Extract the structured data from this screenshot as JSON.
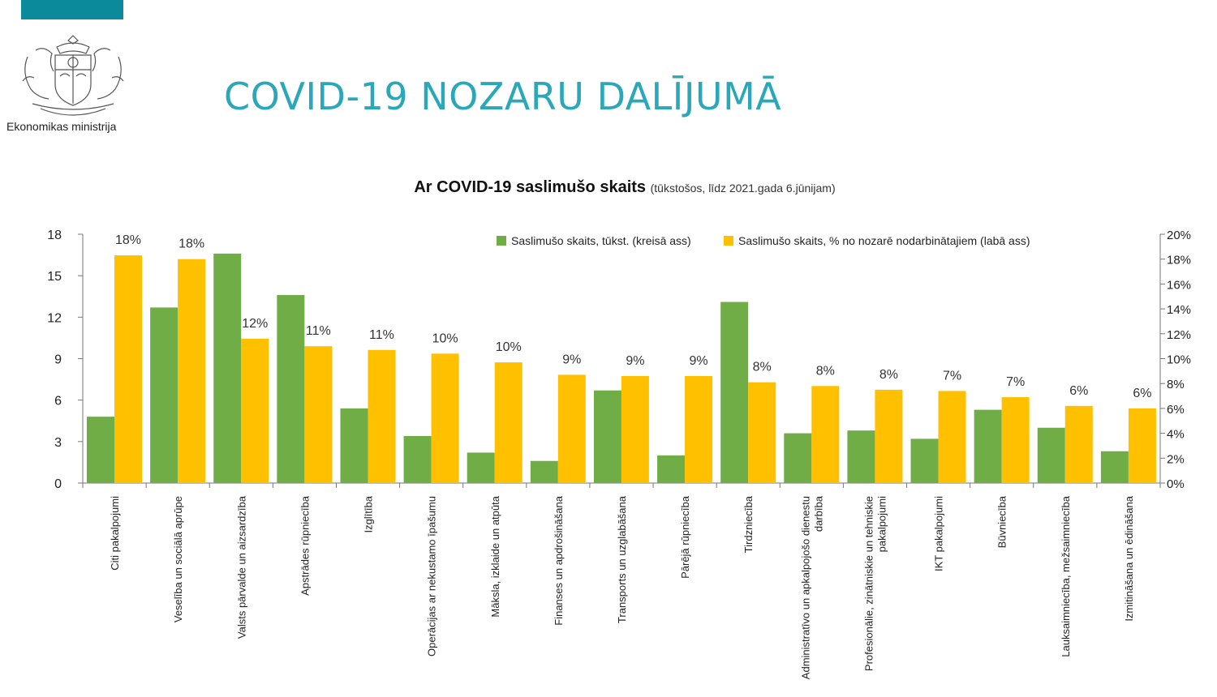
{
  "header": {
    "ministry_name": "Ekonomikas ministrija",
    "page_title": "COVID-19 NOZARU DALĪJUMĀ",
    "accent_color": "#0b8a9c",
    "title_color": "#2aa7b8"
  },
  "chart_data": {
    "type": "bar",
    "title": "Ar COVID-19 saslimušo skaits",
    "subtitle": "(tūkstošos, līdz 2021.gada 6.jūnijam)",
    "categories": [
      [
        "Citi pakalpojumi"
      ],
      [
        "Veselība un sociālā aprūpe"
      ],
      [
        "Valsts pārvalde un aizsardzība"
      ],
      [
        "Apstrādes rūpniecība"
      ],
      [
        "Izglītība"
      ],
      [
        "Operācijas ar nekustamo īpašumu"
      ],
      [
        "Māksla, izklaide un atpūta"
      ],
      [
        "Finanses un apdrošināšana"
      ],
      [
        "Transports un uzglabāšana"
      ],
      [
        "Pārējā rūpniecība"
      ],
      [
        "Tirdzniecība"
      ],
      [
        "Administratīvo un apkalpojošo dienestu",
        "darbība"
      ],
      [
        "Profesionālie, zinātniskie un tehniskie",
        "pakalpojumi"
      ],
      [
        "IKT pakalpojumi"
      ],
      [
        "Būvniecība"
      ],
      [
        "Lauksaimniecība, mežsaimniecība"
      ],
      [
        "Izmitināšana un ēdināšana"
      ]
    ],
    "series": [
      {
        "name": "Saslimušo skaits, tūkst. (kreisā ass)",
        "axis": "left",
        "color": "#70ad47",
        "values": [
          4.8,
          12.7,
          16.6,
          13.6,
          5.4,
          3.4,
          2.2,
          1.6,
          6.7,
          2.0,
          13.1,
          3.6,
          3.8,
          3.2,
          5.3,
          4.0,
          2.3
        ]
      },
      {
        "name": "Saslimušo skaits, % no nozarē nodarbinātajiem (labā ass)",
        "axis": "right",
        "color": "#ffc000",
        "values": [
          18.3,
          18.0,
          11.6,
          11.0,
          10.7,
          10.4,
          9.7,
          8.7,
          8.6,
          8.6,
          8.1,
          7.8,
          7.5,
          7.4,
          6.9,
          6.2,
          6.0
        ],
        "data_labels": [
          "18%",
          "18%",
          "12%",
          "11%",
          "11%",
          "10%",
          "10%",
          "9%",
          "9%",
          "9%",
          "8%",
          "8%",
          "8%",
          "7%",
          "7%",
          "6%",
          "6%"
        ]
      }
    ],
    "y_left": {
      "min": 0,
      "max": 18,
      "ticks": [
        "0",
        "3",
        "6",
        "9",
        "12",
        "15",
        "18"
      ]
    },
    "y_right": {
      "min": 0,
      "max": 20,
      "ticks": [
        "0%",
        "2%",
        "4%",
        "6%",
        "8%",
        "10%",
        "12%",
        "14%",
        "16%",
        "18%",
        "20%"
      ]
    },
    "grid": false,
    "legend_position": "top-right"
  }
}
